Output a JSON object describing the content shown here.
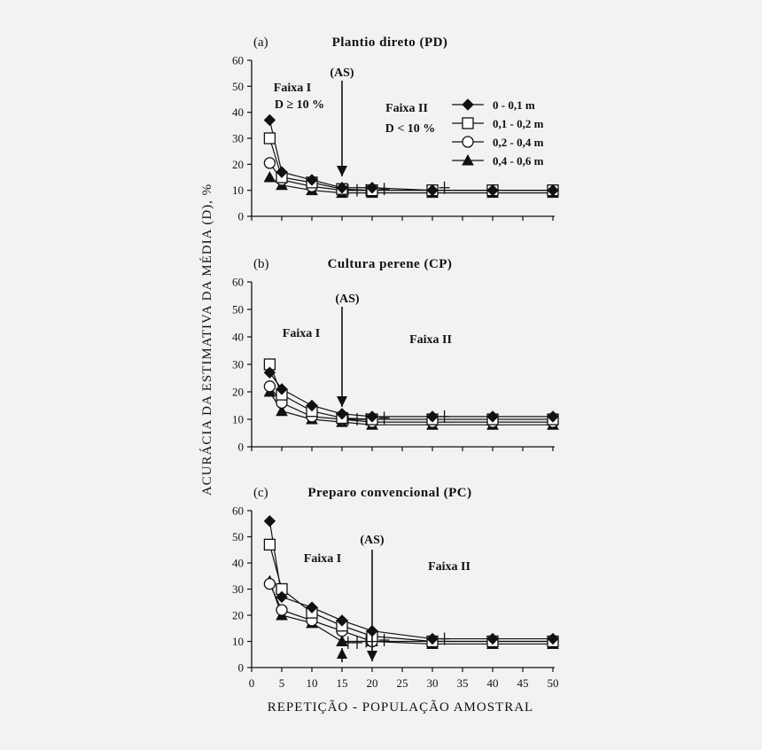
{
  "figure": {
    "y_axis_title": "ACURÁCIA DA ESTIMATIVA DA MÉDIA (D), %",
    "x_axis_title": "REPETIÇÃO - POPULAÇÃO AMOSTRAL"
  },
  "legend": {
    "entries": [
      {
        "label": "0 - 0,1 m",
        "marker": "diamond-filled"
      },
      {
        "label": "0,1 - 0,2 m",
        "marker": "square-open"
      },
      {
        "label": "0,2 - 0,4 m",
        "marker": "circle-open"
      },
      {
        "label": "0,4 - 0,6 m",
        "marker": "triangle-filled"
      }
    ]
  },
  "chart_data": [
    {
      "type": "line",
      "panel": "(a)",
      "title": "Plantio direto (PD)",
      "xlabel": "REPETIÇÃO - POPULAÇÃO AMOSTRAL",
      "ylabel": "ACURÁCIA DA ESTIMATIVA DA MÉDIA (D), %",
      "ylim": [
        0,
        60
      ],
      "yticks": [
        0,
        10,
        20,
        30,
        40,
        50,
        60
      ],
      "x": [
        3,
        5,
        10,
        15,
        20,
        30,
        40,
        50
      ],
      "series": [
        {
          "name": "0 - 0,1 m",
          "marker": "diamond-filled",
          "values": [
            37,
            17,
            14,
            11,
            11,
            10,
            10,
            10
          ]
        },
        {
          "name": "0,1 - 0,2 m",
          "marker": "square-open",
          "values": [
            30,
            15,
            13,
            10.5,
            10,
            10,
            10,
            10
          ]
        },
        {
          "name": "0,2 - 0,4 m",
          "marker": "circle-open",
          "values": [
            20.5,
            14,
            11.5,
            10,
            10,
            10,
            10,
            10
          ]
        },
        {
          "name": "0,4 - 0,6 m",
          "marker": "triangle-filled",
          "values": [
            15,
            12,
            10,
            9,
            9,
            9,
            9,
            9
          ]
        }
      ],
      "plus_markers": {
        "x": [
          16,
          17.5,
          19,
          22,
          32
        ],
        "y": [
          10,
          10,
          10,
          10.5,
          11
        ]
      },
      "annotations": [
        {
          "id": "as",
          "text": "(AS)"
        },
        {
          "id": "faixa1",
          "text": "Faixa I"
        },
        {
          "id": "faixa1_cond",
          "text": "D ≥  10 %"
        },
        {
          "id": "faixa2",
          "text": "Faixa II"
        },
        {
          "id": "faixa2_cond",
          "text": "D < 10 %"
        }
      ],
      "arrows": [
        {
          "x": 15,
          "direction": "down"
        }
      ]
    },
    {
      "type": "line",
      "panel": "(b)",
      "title": "Cultura perene (CP)",
      "xlabel": "REPETIÇÃO - POPULAÇÃO AMOSTRAL",
      "ylabel": "ACURÁCIA DA ESTIMATIVA DA MÉDIA (D), %",
      "ylim": [
        0,
        60
      ],
      "yticks": [
        0,
        10,
        20,
        30,
        40,
        50,
        60
      ],
      "x": [
        3,
        5,
        10,
        15,
        20,
        30,
        40,
        50
      ],
      "series": [
        {
          "name": "0 - 0,1 m",
          "marker": "diamond-filled",
          "values": [
            27,
            21,
            15,
            12,
            11,
            11,
            11,
            11
          ]
        },
        {
          "name": "0,1 - 0,2 m",
          "marker": "square-open",
          "values": [
            30,
            19,
            13,
            10.5,
            10,
            10,
            10,
            10
          ]
        },
        {
          "name": "0,2 - 0,4 m",
          "marker": "circle-open",
          "values": [
            22,
            16,
            11,
            10,
            9,
            9,
            9,
            9
          ]
        },
        {
          "name": "0,4 - 0,6 m",
          "marker": "triangle-filled",
          "values": [
            20,
            13,
            10,
            9,
            8,
            8,
            8,
            8
          ]
        }
      ],
      "plus_markers": {
        "x": [
          16,
          17.5,
          19,
          22,
          32
        ],
        "y": [
          10,
          10,
          10,
          10.5,
          11
        ]
      },
      "annotations": [
        {
          "id": "as",
          "text": "(AS)"
        },
        {
          "id": "faixa1",
          "text": "Faixa I"
        },
        {
          "id": "faixa2",
          "text": "Faixa II"
        }
      ],
      "arrows": [
        {
          "x": 15,
          "direction": "down"
        }
      ]
    },
    {
      "type": "line",
      "panel": "(c)",
      "title": "Preparo convencional (PC)",
      "xlabel": "REPETIÇÃO - POPULAÇÃO AMOSTRAL",
      "ylabel": "ACURÁCIA DA ESTIMATIVA DA MÉDIA (D), %",
      "ylim": [
        0,
        60
      ],
      "yticks": [
        0,
        10,
        20,
        30,
        40,
        50,
        60
      ],
      "xlim": [
        0,
        50
      ],
      "xticks": [
        0,
        5,
        10,
        15,
        20,
        25,
        30,
        35,
        40,
        45,
        50
      ],
      "x": [
        3,
        5,
        10,
        15,
        20,
        30,
        40,
        50
      ],
      "series": [
        {
          "name": "0 - 0,1 m",
          "marker": "diamond-filled",
          "values": [
            56,
            27,
            23,
            18,
            14,
            11,
            11,
            11
          ]
        },
        {
          "name": "0,1 - 0,2 m",
          "marker": "square-open",
          "values": [
            47,
            30,
            21,
            16,
            12,
            10,
            10,
            10
          ]
        },
        {
          "name": "0,2 - 0,4 m",
          "marker": "circle-open",
          "values": [
            32,
            22,
            18,
            14,
            10,
            10,
            10,
            10
          ]
        },
        {
          "name": "0,4 - 0,6 m",
          "marker": "triangle-filled",
          "values": [
            33,
            20,
            17,
            10,
            10,
            9,
            9,
            9
          ]
        }
      ],
      "plus_markers": {
        "x": [
          16,
          17.5,
          19,
          22,
          32
        ],
        "y": [
          9.5,
          9.5,
          10,
          10.5,
          11
        ]
      },
      "annotations": [
        {
          "id": "as",
          "text": "(AS)"
        },
        {
          "id": "faixa1",
          "text": "Faixa I"
        },
        {
          "id": "faixa2",
          "text": "Faixa II"
        }
      ],
      "arrows": [
        {
          "x": 20,
          "direction": "down"
        },
        {
          "x": 15,
          "direction": "up"
        }
      ]
    }
  ]
}
